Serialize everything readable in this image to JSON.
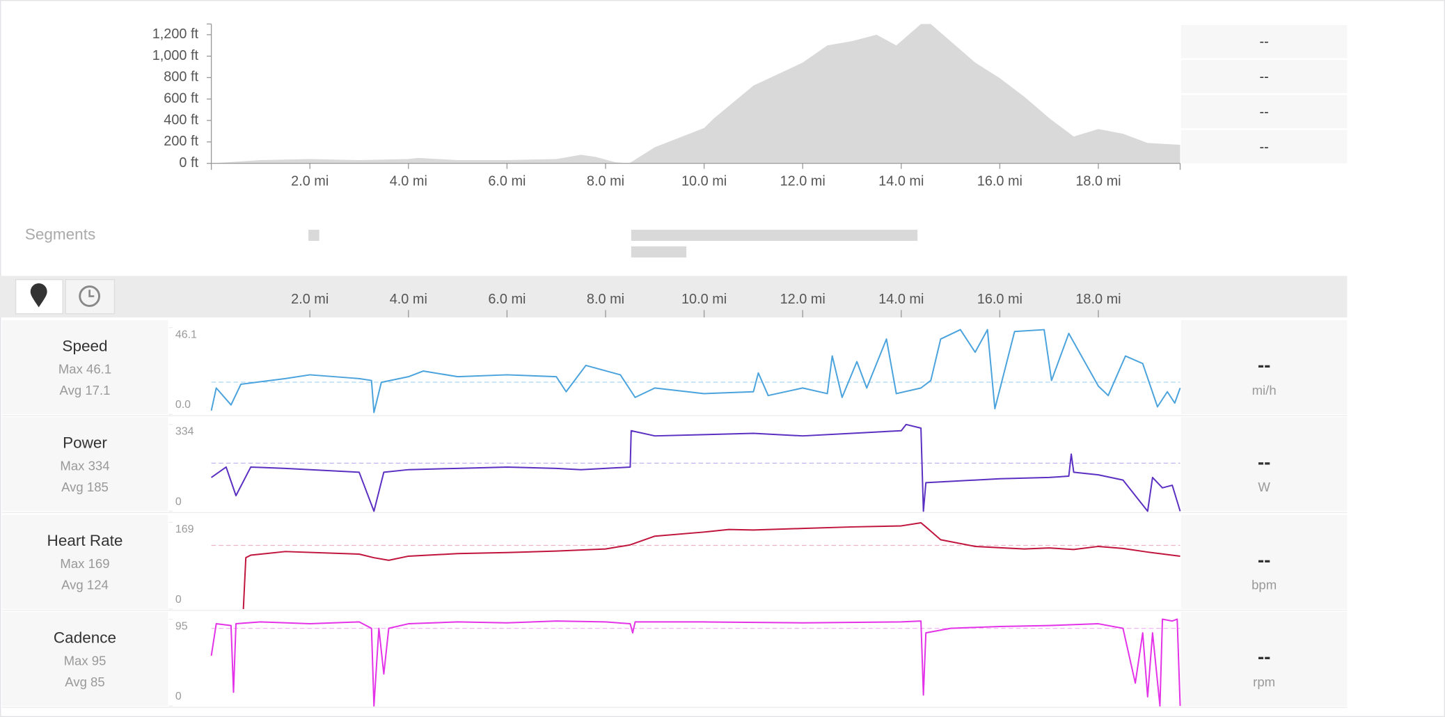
{
  "elevation": {
    "type": "area",
    "color": "#d9d9d9",
    "xlim": [
      0,
      19.66
    ],
    "ylim": [
      0,
      1300
    ],
    "yticks": [
      {
        "value": 0,
        "label": "0 ft"
      },
      {
        "value": 200,
        "label": "200 ft"
      },
      {
        "value": 400,
        "label": "400 ft"
      },
      {
        "value": 600,
        "label": "600 ft"
      },
      {
        "value": 800,
        "label": "800 ft"
      },
      {
        "value": 1000,
        "label": "1,000 ft"
      },
      {
        "value": 1200,
        "label": "1,200 ft"
      }
    ],
    "xticks": [
      {
        "value": 2,
        "label": "2.0 mi"
      },
      {
        "value": 4,
        "label": "4.0 mi"
      },
      {
        "value": 6,
        "label": "6.0 mi"
      },
      {
        "value": 8,
        "label": "8.0 mi"
      },
      {
        "value": 10,
        "label": "10.0 mi"
      },
      {
        "value": 12,
        "label": "12.0 mi"
      },
      {
        "value": 14,
        "label": "14.0 mi"
      },
      {
        "value": 16,
        "label": "16.0 mi"
      },
      {
        "value": 18,
        "label": "18.0 mi"
      }
    ],
    "x": [
      0,
      1,
      2,
      3,
      4,
      4.2,
      5,
      6,
      7,
      7.5,
      7.8,
      8.2,
      8.48,
      9,
      10,
      10.2,
      11,
      12,
      12.5,
      13,
      13.5,
      13.9,
      14.4,
      14.6,
      15,
      15.5,
      16,
      16.5,
      17,
      17.5,
      18,
      18.5,
      19,
      19.66
    ],
    "values": [
      0,
      30,
      40,
      30,
      40,
      50,
      30,
      30,
      40,
      80,
      60,
      10,
      0,
      150,
      330,
      420,
      725,
      940,
      1100,
      1140,
      1200,
      1100,
      1300,
      1300,
      1140,
      940,
      795,
      620,
      423,
      250,
      320,
      276,
      190,
      173
    ]
  },
  "side_panel": [
    "--",
    "--",
    "--",
    "--"
  ],
  "segments": {
    "label": "Segments",
    "color": "#d9d9d9",
    "bars": [
      {
        "start": 1.97,
        "end": 2.19
      },
      {
        "start": 8.52,
        "end": 14.33
      },
      {
        "start": 8.52,
        "end": 9.64
      }
    ]
  },
  "streams": [
    {
      "type": "line",
      "name": "Speed",
      "max_label": "Max 46.1",
      "avg_label": "Avg 17.1",
      "avg": 17.1,
      "value": "--",
      "unit": "mi/h",
      "color": "#4aa3dc",
      "avg_color": "#a9d5f2",
      "ylim": [
        0,
        46.1
      ],
      "yticks": [
        {
          "value": 0,
          "label": "0.0"
        },
        46.1
      ],
      "x": [
        0,
        0.1,
        0.4,
        0.6,
        1.5,
        2.0,
        3.0,
        3.25,
        3.3,
        3.45,
        4.0,
        4.3,
        5.0,
        6.0,
        7.0,
        7.2,
        7.6,
        8.3,
        8.6,
        9.0,
        10.0,
        11.0,
        11.1,
        11.3,
        12.0,
        12.5,
        12.6,
        12.8,
        13.1,
        13.3,
        13.7,
        13.9,
        14.4,
        14.6,
        14.8,
        15.2,
        15.5,
        15.75,
        15.9,
        16.3,
        16.9,
        17.05,
        17.4,
        18.0,
        18.2,
        18.55,
        18.9,
        19.2,
        19.4,
        19.55,
        19.66
      ],
      "values": [
        2,
        14,
        5,
        16,
        19,
        21,
        19,
        18,
        1,
        17,
        20,
        23,
        20,
        21,
        20,
        12,
        26,
        21,
        9,
        14,
        11,
        12,
        22,
        10,
        14,
        11,
        31,
        9,
        28,
        14,
        40,
        11,
        14,
        18,
        40,
        45,
        33,
        45,
        3,
        44,
        45,
        18,
        43,
        15,
        10,
        31,
        27,
        4,
        12,
        6,
        14
      ]
    },
    {
      "type": "line",
      "name": "Power",
      "max_label": "Max 334",
      "avg_label": "Avg 185",
      "avg": 185,
      "value": "--",
      "unit": "W",
      "color": "#5a2fc2",
      "avg_color": "#c2b4ee",
      "ylim": [
        0,
        334
      ],
      "yticks": [
        0,
        334
      ],
      "x": [
        0,
        0.3,
        0.5,
        0.8,
        1.5,
        3.0,
        3.3,
        3.5,
        4.0,
        5.0,
        6.0,
        7.0,
        7.5,
        8.5,
        8.52,
        9.0,
        10.0,
        11.0,
        12.0,
        13.0,
        14.0,
        14.1,
        14.4,
        14.45,
        14.5,
        15.0,
        16.0,
        17.0,
        17.4,
        17.45,
        17.5,
        18.0,
        18.5,
        19.0,
        19.1,
        19.3,
        19.5,
        19.66
      ],
      "values": [
        130,
        170,
        60,
        170,
        165,
        150,
        0,
        150,
        160,
        165,
        170,
        165,
        160,
        170,
        310,
        290,
        295,
        300,
        290,
        300,
        310,
        334,
        320,
        0,
        110,
        115,
        125,
        130,
        135,
        220,
        150,
        140,
        120,
        0,
        130,
        90,
        100,
        0
      ]
    },
    {
      "type": "line",
      "name": "Heart Rate",
      "max_label": "Max 169",
      "avg_label": "Avg 124",
      "avg": 124,
      "value": "--",
      "unit": "bpm",
      "color": "#c0143c",
      "avg_color": "#ecb4c2",
      "ylim": [
        0,
        169
      ],
      "yticks": [
        0,
        169
      ],
      "x": [
        0.65,
        0.7,
        0.8,
        1.5,
        3.0,
        3.3,
        3.6,
        4.0,
        5.0,
        6.0,
        7.0,
        8.0,
        8.5,
        9.0,
        10.0,
        10.5,
        11.0,
        12.0,
        13.0,
        14.0,
        14.4,
        14.5,
        14.8,
        15.5,
        16.5,
        17.0,
        17.5,
        18.0,
        18.5,
        19.0,
        19.66
      ],
      "values": [
        0,
        100,
        105,
        112,
        107,
        100,
        95,
        103,
        108,
        110,
        113,
        117,
        125,
        142,
        150,
        155,
        154,
        157,
        160,
        162,
        168,
        160,
        135,
        122,
        117,
        119,
        116,
        122,
        118,
        111,
        103
      ]
    },
    {
      "type": "line",
      "name": "Cadence",
      "max_label": "Max 95",
      "avg_label": "Avg 85",
      "avg": 85,
      "value": "--",
      "unit": "rpm",
      "color": "#e332e8",
      "avg_color": "#f3b6f4",
      "ylim": [
        0,
        95
      ],
      "yticks": [
        0,
        95
      ],
      "x": [
        0,
        0.1,
        0.4,
        0.45,
        0.5,
        1.0,
        2.0,
        3.0,
        3.25,
        3.3,
        3.4,
        3.5,
        3.6,
        4.0,
        5.0,
        6.0,
        7.0,
        8.0,
        8.5,
        8.55,
        8.6,
        10.0,
        12.0,
        14.0,
        14.4,
        14.45,
        14.5,
        15.0,
        16.0,
        17.0,
        18.0,
        18.5,
        18.75,
        18.9,
        19.0,
        19.1,
        19.25,
        19.3,
        19.5,
        19.6,
        19.66
      ],
      "values": [
        55,
        90,
        88,
        15,
        90,
        92,
        90,
        92,
        85,
        0,
        85,
        35,
        85,
        90,
        92,
        91,
        93,
        92,
        90,
        80,
        92,
        92,
        91,
        92,
        93,
        12,
        80,
        85,
        87,
        88,
        90,
        85,
        25,
        80,
        10,
        80,
        0,
        95,
        93,
        95,
        0
      ]
    }
  ]
}
